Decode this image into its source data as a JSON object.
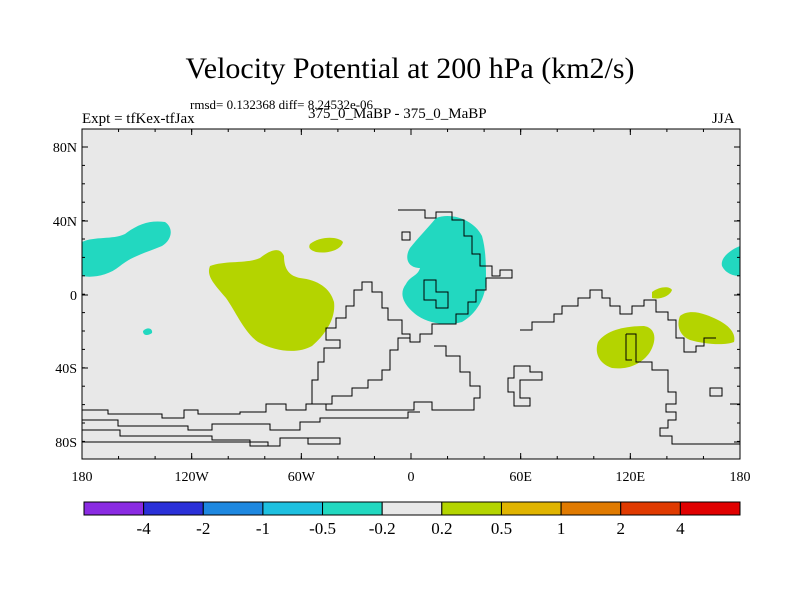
{
  "title": "Velocity Potential at 200 hPa (km2/s)",
  "stats": "rmsd= 0.132368 diff= 8.24532e-06",
  "left_label": "Expt = tfKex-tfJax",
  "center_label": "375_0_MaBP - 375_0_MaBP",
  "right_label": "JJA",
  "lat_labels": [
    "80N",
    "40N",
    "0",
    "40S",
    "80S"
  ],
  "lon_labels": [
    "180",
    "120W",
    "60W",
    "0",
    "60E",
    "120E",
    "180"
  ],
  "colorbar": {
    "colors": [
      "#8a2be2",
      "#2a30d8",
      "#1e88e0",
      "#1ec0e0",
      "#22d8c0",
      "#e8e8e8",
      "#b4d400",
      "#e0b400",
      "#e07a00",
      "#e03a00",
      "#e00000"
    ],
    "labels": [
      "-4",
      "-2",
      "-1",
      "-0.5",
      "-0.2",
      "0.2",
      "0.5",
      "1",
      "2",
      "4"
    ]
  },
  "map_colors": {
    "background": "#e8e8e8",
    "negative": "#22d8c0",
    "positive": "#b4d400"
  }
}
